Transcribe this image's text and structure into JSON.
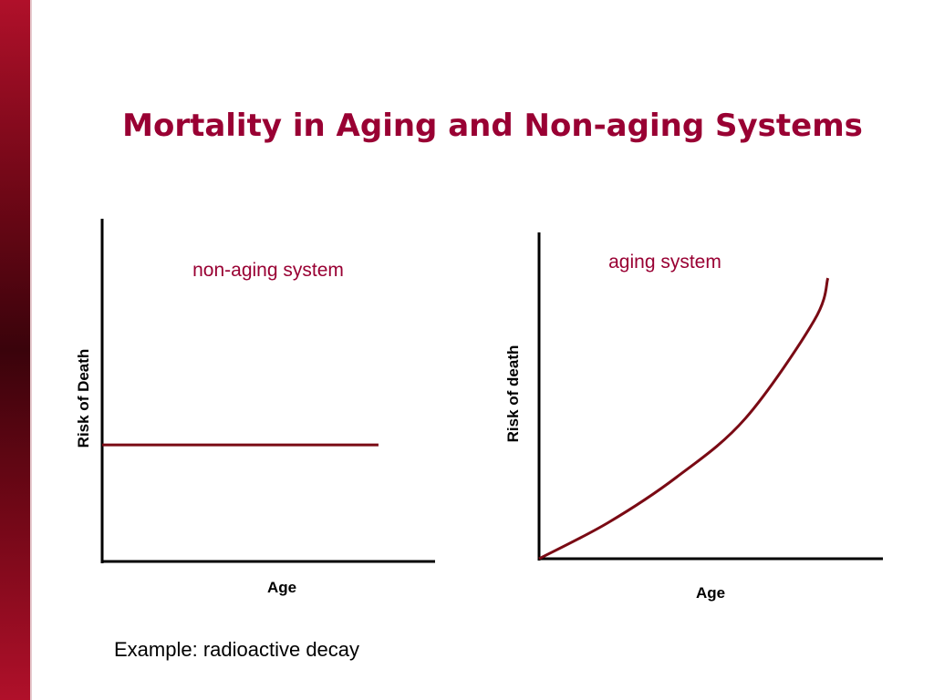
{
  "slide": {
    "title": "Mortality in Aging and Non-aging Systems",
    "example": "Example: radioactive decay"
  },
  "colors": {
    "accent": "#990033",
    "curve": "#7a0a14",
    "axis": "#000000",
    "sidebar_top": "#b0102a",
    "sidebar_mid": "#3a030b"
  },
  "chart_data": [
    {
      "type": "line",
      "title": "non-aging system",
      "xlabel": "Age",
      "ylabel": "Risk of Death",
      "series": [
        {
          "x": [
            0,
            0.83
          ],
          "y": [
            0.34,
            0.34
          ]
        }
      ],
      "xlim": [
        0,
        1
      ],
      "ylim": [
        0,
        1
      ],
      "grid": false
    },
    {
      "type": "line",
      "title": "aging system",
      "xlabel": "Age",
      "ylabel": "Risk of death",
      "series": [
        {
          "x": [
            0,
            0.2,
            0.4,
            0.6,
            0.8,
            0.84
          ],
          "y": [
            0,
            0.11,
            0.25,
            0.43,
            0.73,
            0.86
          ]
        }
      ],
      "xlim": [
        0,
        1
      ],
      "ylim": [
        0,
        1
      ],
      "grid": false
    }
  ]
}
